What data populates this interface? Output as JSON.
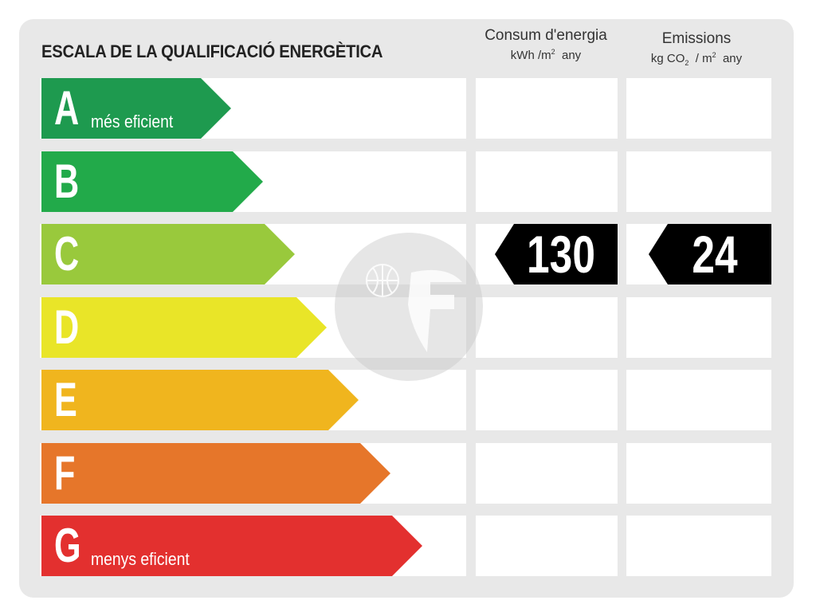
{
  "title": "ESCALA DE LA QUALIFICACIÓ ENERGÈTICA",
  "columns": {
    "energy": {
      "label": "Consum d'energia",
      "unit_prefix": "kWh /m",
      "unit_sup": "2",
      "unit_suffix": "any"
    },
    "emissions": {
      "label": "Emissions",
      "unit_prefix": "kg CO",
      "unit_sub": "2",
      "unit_mid": "/ m",
      "unit_sup": "2",
      "unit_suffix": "any"
    }
  },
  "chart_data": {
    "type": "bar",
    "categories": [
      "A",
      "B",
      "C",
      "D",
      "E",
      "F",
      "G"
    ],
    "bands": [
      {
        "letter": "A",
        "sublabel": "més eficient",
        "color": "#1e9a4f"
      },
      {
        "letter": "B",
        "sublabel": "",
        "color": "#22aa4a"
      },
      {
        "letter": "C",
        "sublabel": "",
        "color": "#99c93c"
      },
      {
        "letter": "D",
        "sublabel": "",
        "color": "#e9e528"
      },
      {
        "letter": "E",
        "sublabel": "",
        "color": "#f0b51e"
      },
      {
        "letter": "F",
        "sublabel": "",
        "color": "#e6762a"
      },
      {
        "letter": "G",
        "sublabel": "menys eficient",
        "color": "#e3302f"
      }
    ],
    "rating": {
      "energy": {
        "class": "C",
        "value": "130"
      },
      "emissions": {
        "class": "C",
        "value": "24"
      }
    },
    "marker_color": "#000000"
  }
}
